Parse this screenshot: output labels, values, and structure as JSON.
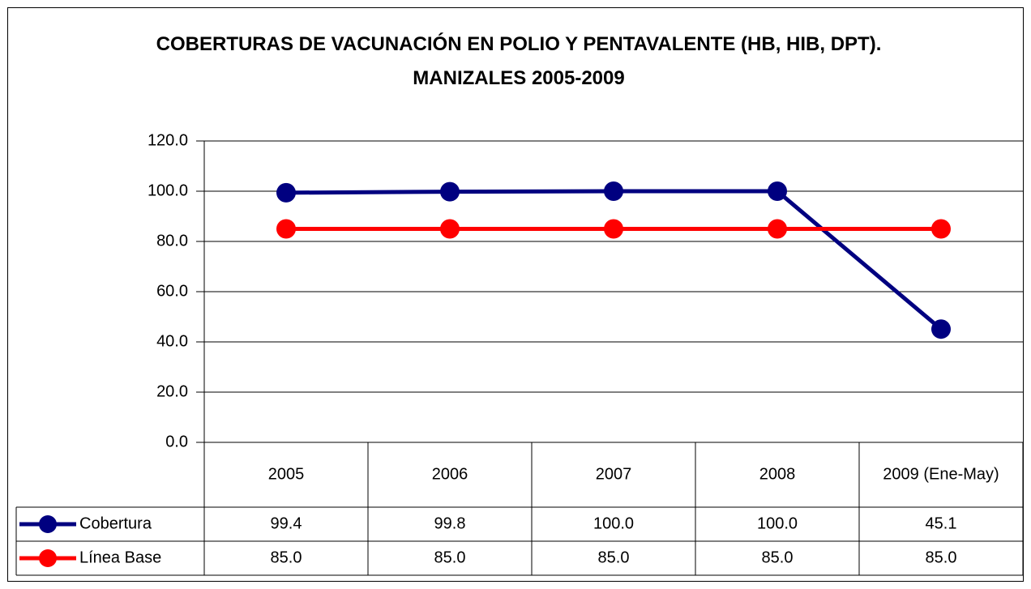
{
  "chart_data": {
    "type": "line",
    "title": "COBERTURAS DE VACUNACIÓN EN POLIO Y PENTAVALENTE (HB, HIB, DPT). MANIZALES 2005-2009",
    "categories": [
      "2005",
      "2006",
      "2007",
      "2008",
      "2009 (Ene-May)"
    ],
    "series": [
      {
        "name": "Cobertura",
        "color": "#000080",
        "values": [
          99.4,
          99.8,
          100,
          100,
          45.1
        ],
        "value_labels": [
          "99.4",
          "99.8",
          "100.0",
          "100.0",
          "45.1"
        ]
      },
      {
        "name": "Línea Base",
        "color": "#ff0000",
        "values": [
          85,
          85,
          85,
          85,
          85
        ],
        "value_labels": [
          "85.0",
          "85.0",
          "85.0",
          "85.0",
          "85.0"
        ]
      }
    ],
    "ylim": [
      0,
      120
    ],
    "yticks": [
      {
        "value": 0,
        "label": "0.0"
      },
      {
        "value": 20,
        "label": "20.0"
      },
      {
        "value": 40,
        "label": "40.0"
      },
      {
        "value": 60,
        "label": "60.0"
      },
      {
        "value": 80,
        "label": "80.0"
      },
      {
        "value": 100,
        "label": "100.0"
      },
      {
        "value": 120,
        "label": "120.0"
      }
    ],
    "grid": true
  }
}
